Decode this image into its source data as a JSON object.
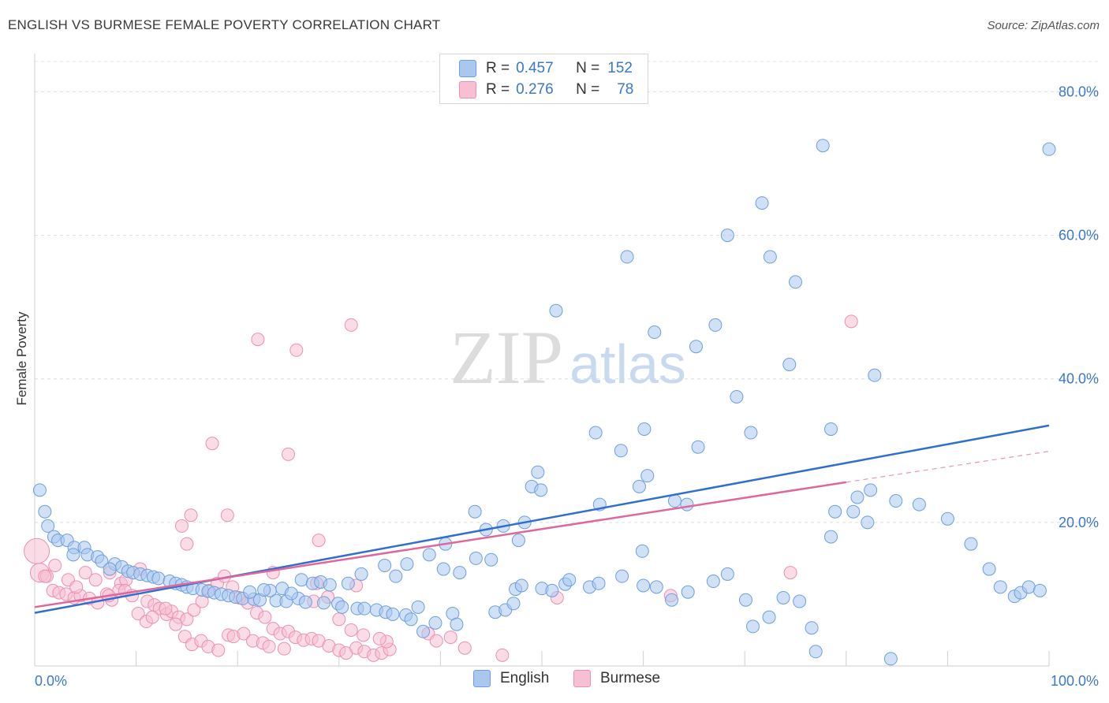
{
  "header": {
    "title": "ENGLISH VS BURMESE FEMALE POVERTY CORRELATION CHART",
    "source": "Source: ZipAtlas.com"
  },
  "legend": {
    "english": {
      "r_label": "R =",
      "r_value": "0.457",
      "n_label": "N =",
      "n_value": "152"
    },
    "burmese": {
      "r_label": "R =",
      "r_value": "0.276",
      "n_label": "N =",
      "n_value": "78"
    }
  },
  "colors": {
    "english_fill": "#aac8ee",
    "english_stroke": "#6d9ee0",
    "english_line": "#2f6fd0",
    "burmese_fill": "#f6c0d2",
    "burmese_stroke": "#ee8fb0",
    "burmese_line": "#e0679a",
    "tick_label": "#3a78c9"
  },
  "chart_data": {
    "type": "scatter",
    "title": "ENGLISH VS BURMESE FEMALE POVERTY CORRELATION CHART",
    "xlabel": "",
    "ylabel": "Female Poverty",
    "xlim": [
      0,
      100
    ],
    "ylim": [
      0,
      80
    ],
    "x_tick_labels": [
      "0.0%",
      "100.0%"
    ],
    "y_ticks": [
      20,
      40,
      60,
      80
    ],
    "y_tick_labels": [
      "20.0%",
      "40.0%",
      "60.0%",
      "80.0%"
    ],
    "grid": true,
    "legend_position": "top-center",
    "watermark": "ZIPatlas",
    "series": [
      {
        "name": "English",
        "trend": {
          "x0": 0,
          "y0": 7.4,
          "x1": 100,
          "y1": 33.5
        },
        "points": [
          [
            0.5,
            24.5
          ],
          [
            1.0,
            21.5
          ],
          [
            1.3,
            19.5
          ],
          [
            1.9,
            18
          ],
          [
            2.3,
            17.5
          ],
          [
            3.2,
            17.5
          ],
          [
            3.9,
            16.5
          ],
          [
            4.9,
            16.5
          ],
          [
            3.8,
            15.5
          ],
          [
            5.2,
            15.5
          ],
          [
            6.2,
            15.2
          ],
          [
            6.6,
            14.6
          ],
          [
            7.9,
            14.2
          ],
          [
            8.6,
            13.8
          ],
          [
            7.4,
            13.5
          ],
          [
            9.2,
            13.2
          ],
          [
            9.7,
            13
          ],
          [
            10.4,
            12.8
          ],
          [
            11.1,
            12.6
          ],
          [
            11.7,
            12.4
          ],
          [
            12.2,
            12.2
          ],
          [
            13.3,
            11.8
          ],
          [
            13.9,
            11.5
          ],
          [
            14.5,
            11.3
          ],
          [
            15.0,
            11
          ],
          [
            15.6,
            10.8
          ],
          [
            16.5,
            10.6
          ],
          [
            17.1,
            10.4
          ],
          [
            17.7,
            10.2
          ],
          [
            18.4,
            10
          ],
          [
            19.1,
            9.8
          ],
          [
            19.8,
            9.6
          ],
          [
            20.5,
            9.4
          ],
          [
            21.6,
            9.3
          ],
          [
            22.2,
            9.2
          ],
          [
            23.8,
            9.1
          ],
          [
            24.8,
            9
          ],
          [
            26.0,
            9.4
          ],
          [
            26.7,
            8.9
          ],
          [
            28.5,
            8.8
          ],
          [
            29.9,
            8.7
          ],
          [
            30.3,
            8.2
          ],
          [
            31.8,
            8
          ],
          [
            32.5,
            8
          ],
          [
            33.7,
            7.8
          ],
          [
            34.6,
            7.5
          ],
          [
            35.3,
            7.2
          ],
          [
            36.6,
            7.1
          ],
          [
            37.1,
            6.5
          ],
          [
            39.5,
            6
          ],
          [
            41.2,
            7.3
          ],
          [
            45.4,
            7.5
          ],
          [
            46.4,
            7.8
          ],
          [
            47.2,
            8.7
          ],
          [
            47.4,
            10.7
          ],
          [
            48.0,
            11.2
          ],
          [
            50.0,
            10.8
          ],
          [
            51.0,
            10.5
          ],
          [
            52.3,
            11.4
          ],
          [
            52.7,
            12
          ],
          [
            54.7,
            11
          ],
          [
            55.6,
            11.5
          ],
          [
            57.9,
            12.5
          ],
          [
            60.0,
            11.2
          ],
          [
            61.3,
            11
          ],
          [
            62.8,
            9.2
          ],
          [
            64.4,
            10.3
          ],
          [
            66.9,
            11.8
          ],
          [
            68.3,
            12.8
          ],
          [
            70.1,
            9.2
          ],
          [
            70.8,
            5.5
          ],
          [
            72.4,
            6.8
          ],
          [
            73.8,
            9.5
          ],
          [
            75.4,
            9
          ],
          [
            76.6,
            5.3
          ],
          [
            77.0,
            2
          ],
          [
            78.5,
            18
          ],
          [
            78.9,
            21.5
          ],
          [
            80.7,
            21.5
          ],
          [
            81.1,
            23.5
          ],
          [
            82.4,
            24.5
          ],
          [
            82.1,
            20
          ],
          [
            84.4,
            1
          ],
          [
            84.9,
            23
          ],
          [
            87.2,
            22.5
          ],
          [
            90.0,
            20.5
          ],
          [
            92.3,
            17
          ],
          [
            94.1,
            13.5
          ],
          [
            95.2,
            11
          ],
          [
            96.6,
            9.7
          ],
          [
            97.2,
            10.2
          ],
          [
            98.0,
            11
          ],
          [
            99.1,
            10.5
          ],
          [
            100.0,
            72
          ],
          [
            77.7,
            72.5
          ],
          [
            71.7,
            64.5
          ],
          [
            68.3,
            60
          ],
          [
            72.5,
            57
          ],
          [
            58.4,
            57
          ],
          [
            75.0,
            53.5
          ],
          [
            51.4,
            49.5
          ],
          [
            61.1,
            46.5
          ],
          [
            67.1,
            47.5
          ],
          [
            65.2,
            44.5
          ],
          [
            74.4,
            42
          ],
          [
            82.8,
            40.5
          ],
          [
            69.2,
            37.5
          ],
          [
            60.1,
            33
          ],
          [
            55.3,
            32.5
          ],
          [
            70.6,
            32.5
          ],
          [
            78.5,
            33
          ],
          [
            65.4,
            30.5
          ],
          [
            57.8,
            30
          ],
          [
            49.6,
            27
          ],
          [
            49.0,
            25
          ],
          [
            49.9,
            24.5
          ],
          [
            55.7,
            22.5
          ],
          [
            59.6,
            25
          ],
          [
            60.4,
            26.5
          ],
          [
            63.1,
            23
          ],
          [
            64.3,
            22.5
          ],
          [
            43.4,
            21.5
          ],
          [
            44.5,
            19
          ],
          [
            46.2,
            19.5
          ],
          [
            48.3,
            20
          ],
          [
            47.7,
            17.5
          ],
          [
            59.9,
            16
          ],
          [
            40.5,
            17
          ],
          [
            38.9,
            15.5
          ],
          [
            43.5,
            15
          ],
          [
            45.0,
            14.8
          ],
          [
            40.3,
            13.5
          ],
          [
            34.5,
            14
          ],
          [
            36.7,
            14.2
          ],
          [
            41.9,
            13
          ],
          [
            32.2,
            12.8
          ],
          [
            35.6,
            12.5
          ],
          [
            26.3,
            12
          ],
          [
            27.4,
            11.5
          ],
          [
            28.2,
            11.7
          ],
          [
            29.1,
            11.3
          ],
          [
            30.9,
            11.5
          ],
          [
            23.2,
            10.5
          ],
          [
            24.4,
            10.8
          ],
          [
            25.3,
            10.1
          ],
          [
            21.2,
            10.3
          ],
          [
            22.6,
            10.6
          ],
          [
            37.8,
            8.2
          ],
          [
            41.6,
            5.8
          ],
          [
            38.3,
            4.8
          ]
        ]
      },
      {
        "name": "Burmese",
        "trend": {
          "x0": 0,
          "y0": 8.2,
          "x1": 80,
          "y1": 25.6,
          "dash_to_x": 100,
          "dash_to_y": 29.9
        },
        "points": [
          [
            0.2,
            16
          ],
          [
            0.5,
            13
          ],
          [
            1.2,
            12.5
          ],
          [
            1.8,
            10.5
          ],
          [
            2.4,
            10.2
          ],
          [
            3.1,
            10
          ],
          [
            3.9,
            9.5
          ],
          [
            4.5,
            9.8
          ],
          [
            5.4,
            9.4
          ],
          [
            6.2,
            8.8
          ],
          [
            7.1,
            10
          ],
          [
            7.6,
            9.2
          ],
          [
            8.5,
            11.5
          ],
          [
            9.0,
            12
          ],
          [
            8.3,
            10.5
          ],
          [
            10.4,
            13.5
          ],
          [
            11.1,
            9
          ],
          [
            11.8,
            8.5
          ],
          [
            12.3,
            8
          ],
          [
            13.0,
            7.2
          ],
          [
            13.5,
            7.6
          ],
          [
            14.2,
            6.8
          ],
          [
            15.0,
            6.5
          ],
          [
            15.7,
            7.8
          ],
          [
            16.5,
            9
          ],
          [
            17.2,
            10.5
          ],
          [
            18.0,
            11.5
          ],
          [
            18.7,
            12.5
          ],
          [
            19.5,
            11
          ],
          [
            20.2,
            9.5
          ],
          [
            21.0,
            8.8
          ],
          [
            21.9,
            7.4
          ],
          [
            22.7,
            6.8
          ],
          [
            23.5,
            5.2
          ],
          [
            24.2,
            4.5
          ],
          [
            25.0,
            4.8
          ],
          [
            25.7,
            4
          ],
          [
            26.5,
            3.6
          ],
          [
            27.3,
            3.8
          ],
          [
            28.0,
            3.5
          ],
          [
            29.0,
            2.8
          ],
          [
            30.0,
            2.2
          ],
          [
            30.7,
            1.8
          ],
          [
            31.7,
            2.5
          ],
          [
            32.5,
            2
          ],
          [
            33.4,
            1.5
          ],
          [
            34.2,
            1.8
          ],
          [
            35.0,
            2.3
          ],
          [
            1.0,
            12.5
          ],
          [
            2.0,
            14
          ],
          [
            3.3,
            12
          ],
          [
            4.1,
            11
          ],
          [
            5.0,
            13
          ],
          [
            6.0,
            12
          ],
          [
            7.4,
            13
          ],
          [
            8.9,
            10.5
          ],
          [
            9.6,
            9.8
          ],
          [
            10.2,
            7.3
          ],
          [
            11.0,
            6.2
          ],
          [
            11.6,
            6.8
          ],
          [
            12.9,
            8
          ],
          [
            13.9,
            5.8
          ],
          [
            14.8,
            4.1
          ],
          [
            15.5,
            3
          ],
          [
            16.4,
            3.5
          ],
          [
            17.1,
            2.7
          ],
          [
            18.1,
            2.2
          ],
          [
            19.1,
            4.3
          ],
          [
            19.6,
            4.1
          ],
          [
            20.6,
            4.5
          ],
          [
            21.5,
            3.5
          ],
          [
            22.5,
            3.2
          ],
          [
            23.1,
            2.7
          ],
          [
            24.6,
            2.4
          ],
          [
            7.3,
            9.8
          ],
          [
            27.8,
            11.5
          ],
          [
            31.7,
            11.2
          ],
          [
            34.7,
            3.4
          ]
        ],
        "extra_points": [
          [
            14.5,
            19.5
          ],
          [
            15.4,
            21
          ],
          [
            15.0,
            17
          ],
          [
            19.0,
            21
          ],
          [
            17.5,
            31
          ],
          [
            22.0,
            45.5
          ],
          [
            25.8,
            44
          ],
          [
            31.2,
            47.5
          ],
          [
            25.0,
            29.5
          ],
          [
            28.0,
            17.5
          ],
          [
            23.5,
            13
          ],
          [
            27.5,
            9
          ],
          [
            28.9,
            9.6
          ],
          [
            30.0,
            6.5
          ],
          [
            31.2,
            5
          ],
          [
            32.4,
            4.3
          ],
          [
            34.0,
            3.8
          ],
          [
            38.8,
            4.5
          ],
          [
            39.6,
            3.5
          ],
          [
            41.0,
            4
          ],
          [
            42.4,
            2.5
          ],
          [
            46.1,
            1.5
          ],
          [
            51.5,
            9.5
          ],
          [
            62.7,
            9.8
          ],
          [
            74.5,
            13
          ],
          [
            80.5,
            48
          ]
        ]
      }
    ]
  }
}
